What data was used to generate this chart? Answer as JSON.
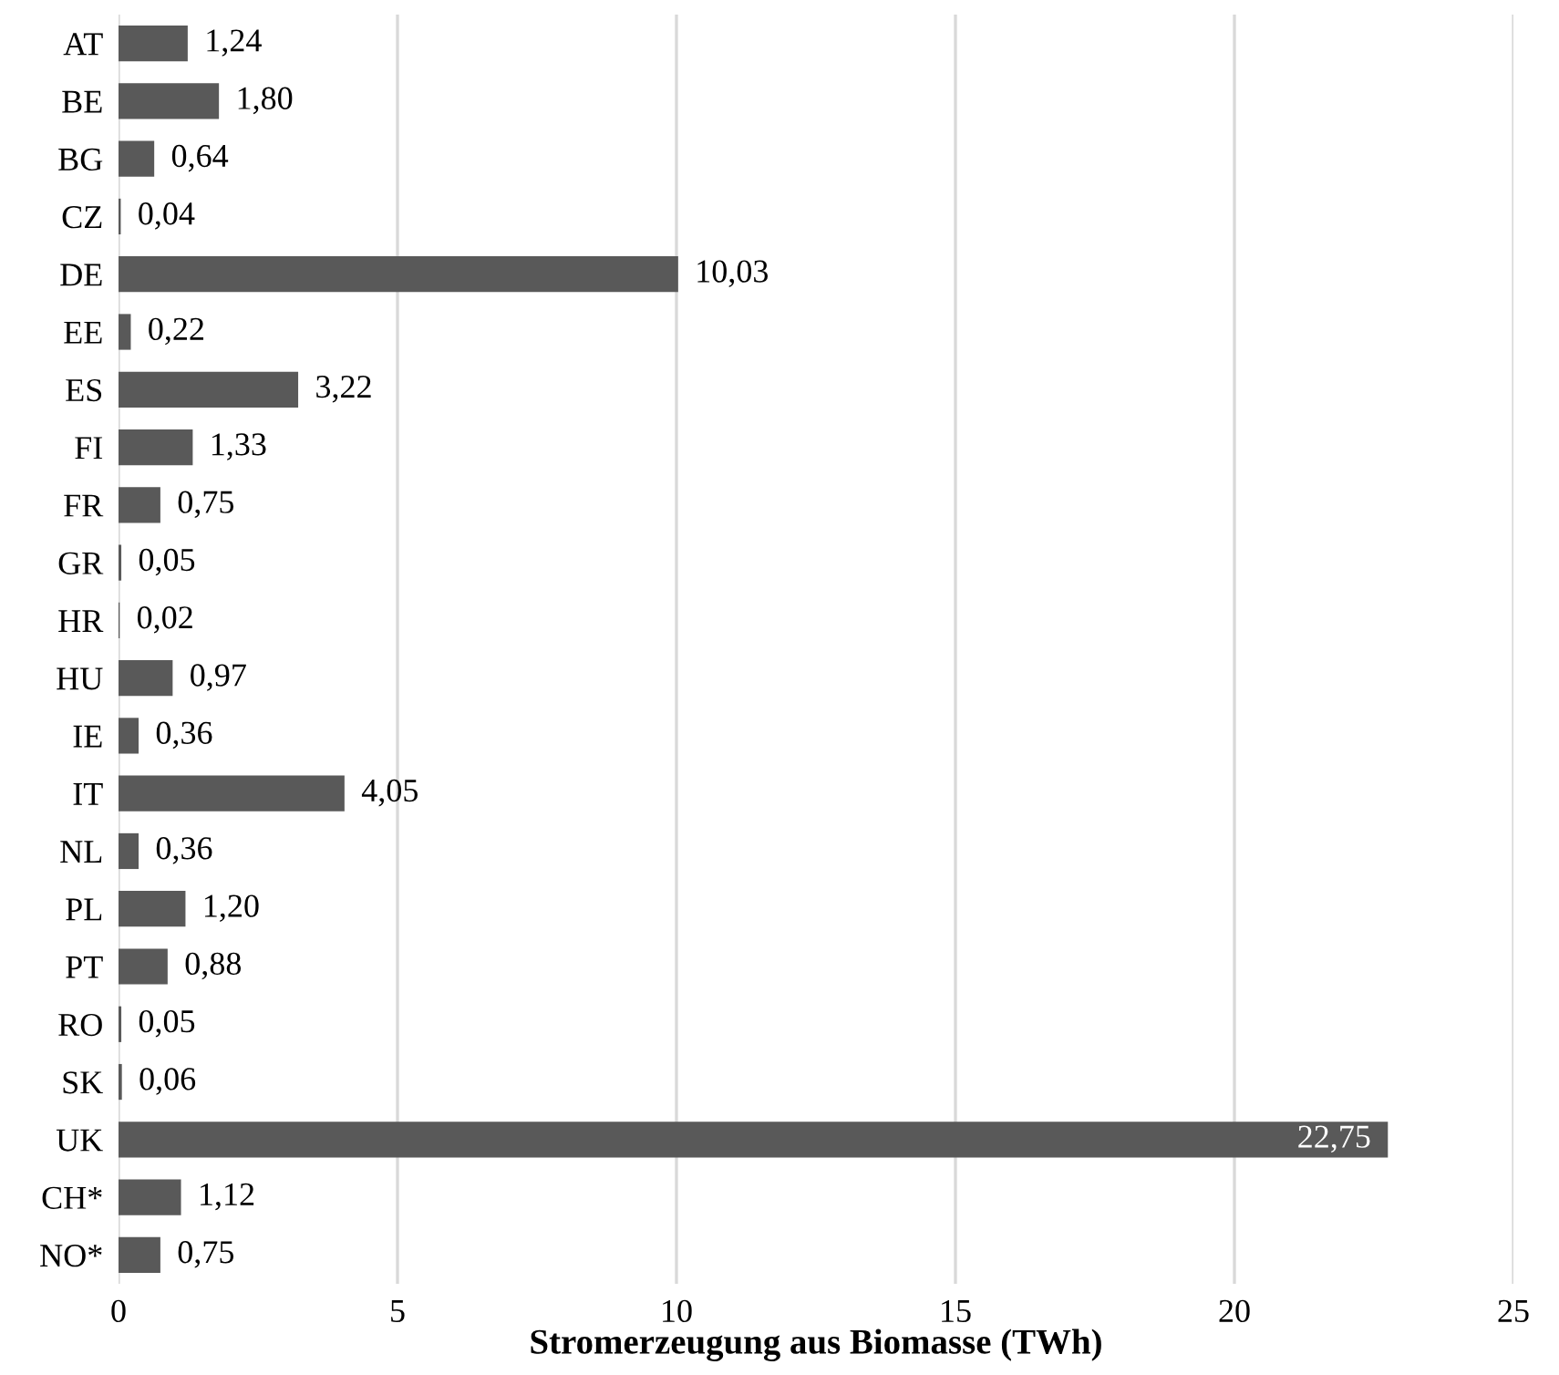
{
  "chart_data": {
    "type": "bar",
    "orientation": "horizontal",
    "xlabel": "Stromerzeugung aus Biomasse (TWh)",
    "categories": [
      "AT",
      "BE",
      "BG",
      "CZ",
      "DE",
      "EE",
      "ES",
      "FI",
      "FR",
      "GR",
      "HR",
      "HU",
      "IE",
      "IT",
      "NL",
      "PL",
      "PT",
      "RO",
      "SK",
      "UK",
      "CH*",
      "NO*"
    ],
    "values": [
      1.24,
      1.8,
      0.64,
      0.04,
      10.03,
      0.22,
      3.22,
      1.33,
      0.75,
      0.05,
      0.02,
      0.97,
      0.36,
      4.05,
      0.36,
      1.2,
      0.88,
      0.05,
      0.06,
      22.75,
      1.12,
      0.75
    ],
    "value_labels": [
      "1,24",
      "1,80",
      "0,64",
      "0,04",
      "10,03",
      "0,22",
      "3,22",
      "1,33",
      "0,75",
      "0,05",
      "0,02",
      "0,97",
      "0,36",
      "4,05",
      "0,36",
      "1,20",
      "0,88",
      "0,05",
      "0,06",
      "22,75",
      "1,12",
      "0,75"
    ],
    "color": "#595959",
    "xlim": [
      0,
      25
    ],
    "xticks": [
      0,
      5,
      10,
      15,
      20,
      25
    ],
    "grid": "x"
  }
}
